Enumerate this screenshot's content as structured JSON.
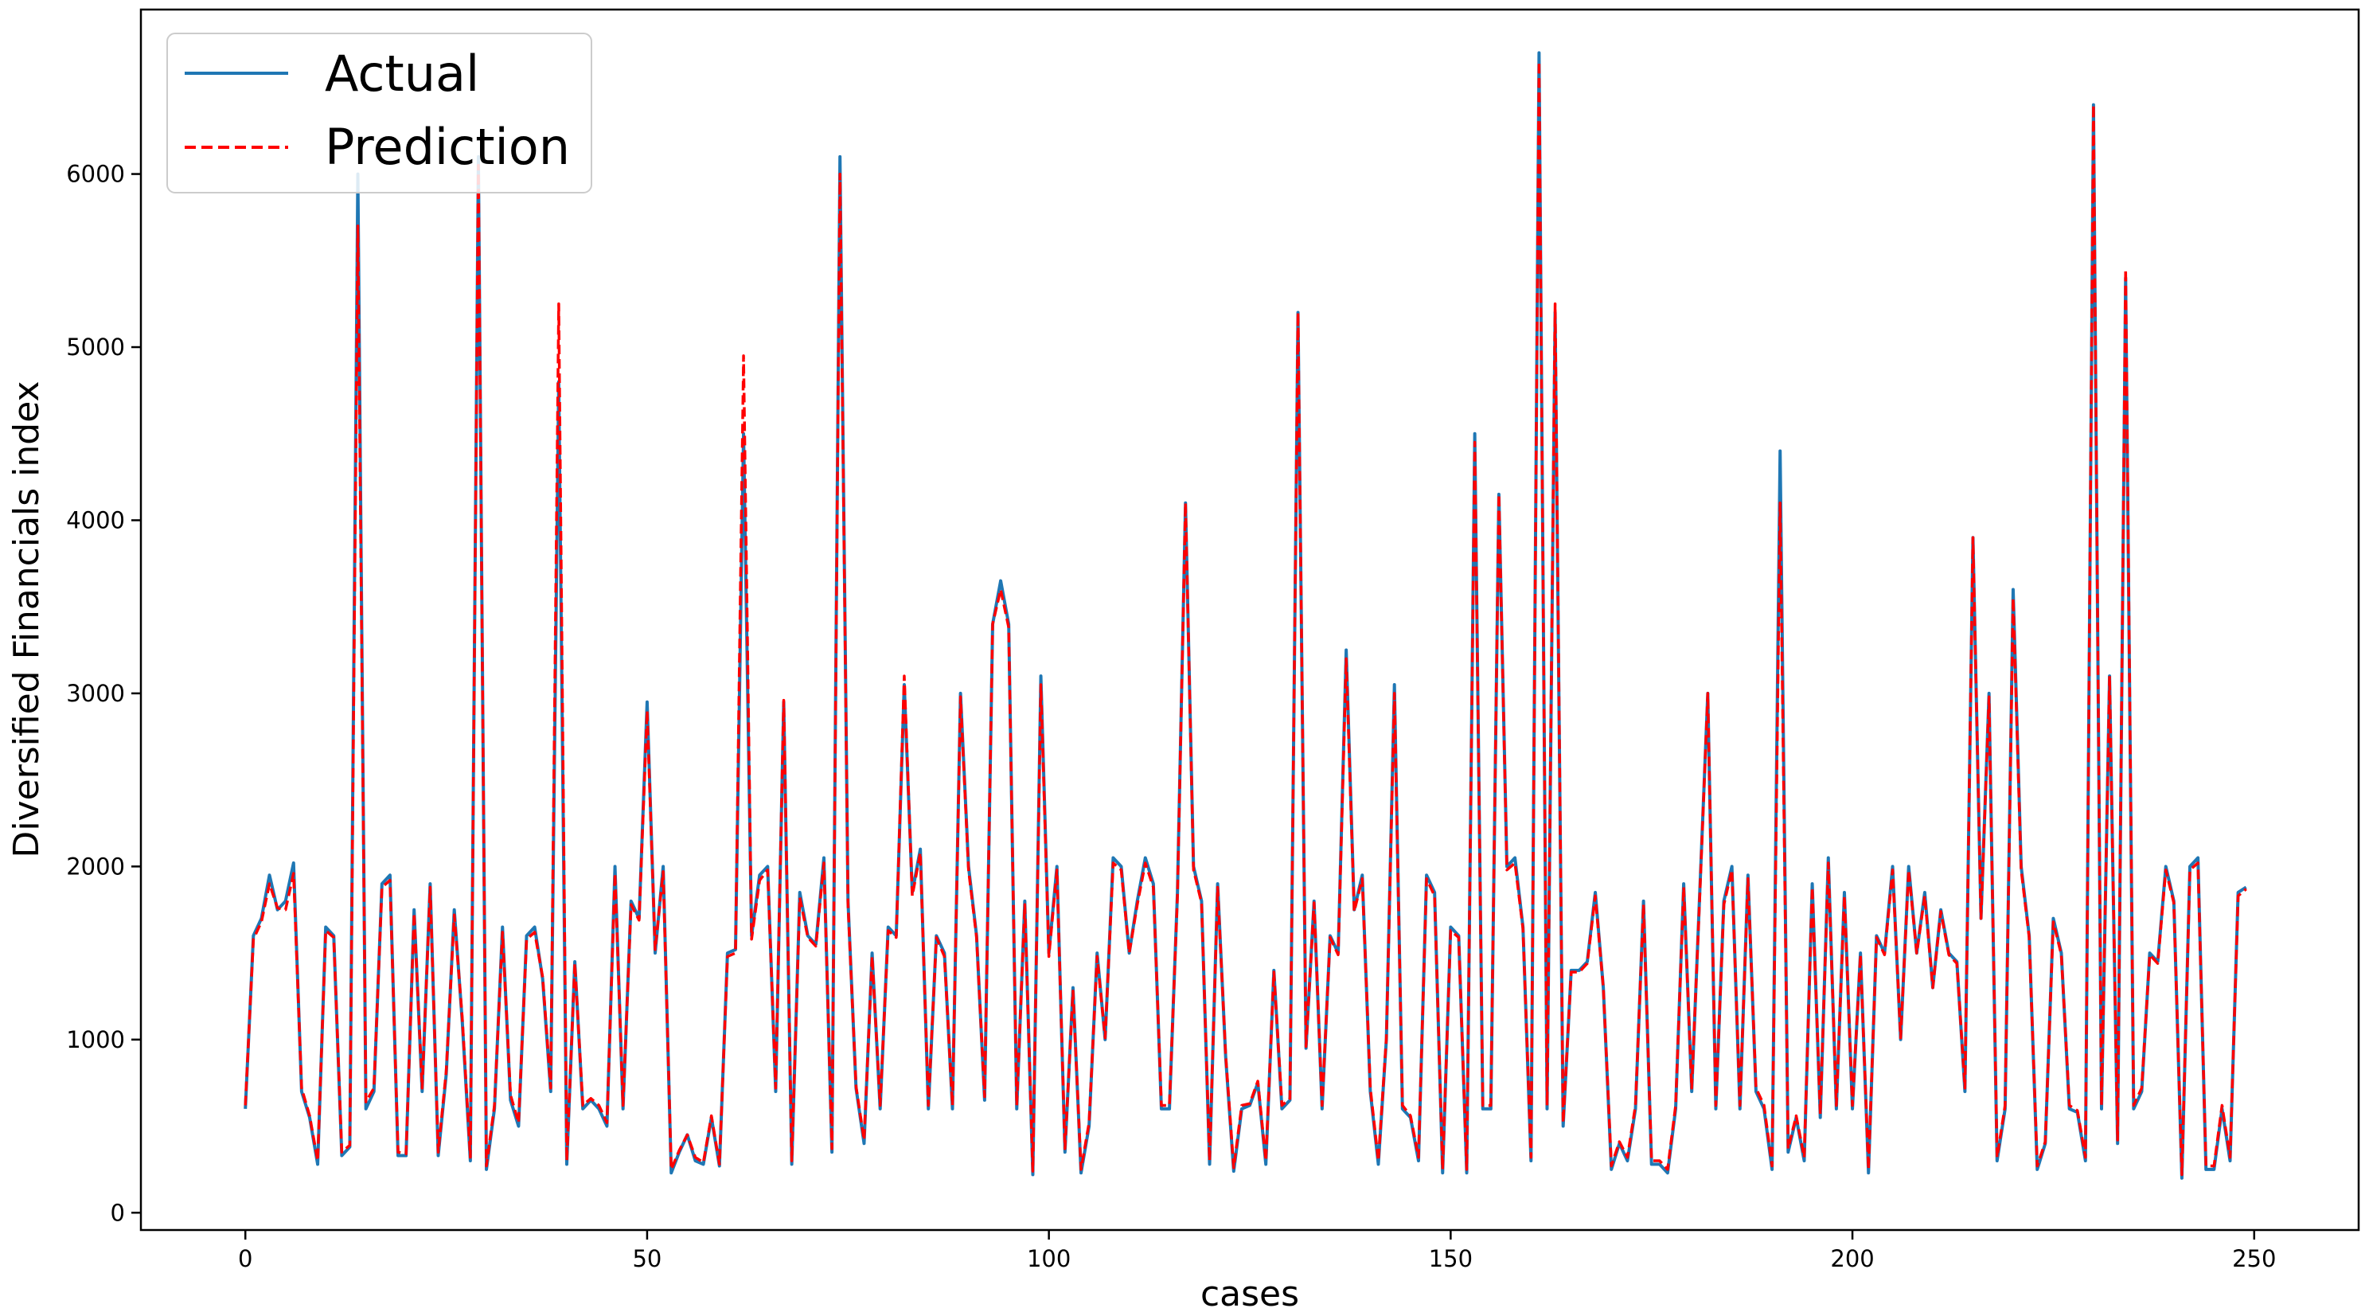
{
  "chart_data": {
    "type": "line",
    "xlabel": "cases",
    "ylabel": "Diversified Financials index",
    "xlim": [
      -13,
      263
    ],
    "ylim": [
      -100,
      6950
    ],
    "xticks": [
      0,
      50,
      100,
      150,
      200,
      250
    ],
    "yticks": [
      0,
      1000,
      2000,
      3000,
      4000,
      5000,
      6000
    ],
    "legend": {
      "placement": "top-left"
    },
    "colors": {
      "actual": "#1f77b4",
      "prediction": "#ff0000"
    },
    "series": [
      {
        "name": "Actual",
        "style": "solid",
        "values": [
          600,
          1600,
          1700,
          1950,
          1750,
          1800,
          2020,
          700,
          550,
          280,
          1650,
          1600,
          330,
          380,
          6000,
          600,
          700,
          1900,
          1950,
          330,
          330,
          1750,
          700,
          1900,
          330,
          800,
          1750,
          1100,
          300,
          6100,
          250,
          600,
          1650,
          650,
          500,
          1600,
          1650,
          1350,
          700,
          4800,
          280,
          1450,
          600,
          650,
          600,
          500,
          2000,
          600,
          1800,
          1700,
          2950,
          1500,
          2000,
          230,
          350,
          450,
          300,
          280,
          550,
          270,
          1500,
          1520,
          4500,
          1600,
          1950,
          2000,
          700,
          2950,
          280,
          1850,
          1600,
          1550,
          2050,
          350,
          6100,
          1800,
          720,
          400,
          1500,
          600,
          1650,
          1600,
          3050,
          1850,
          2100,
          600,
          1600,
          1500,
          600,
          3000,
          2000,
          1600,
          650,
          3400,
          3650,
          3400,
          600,
          1800,
          220,
          3100,
          1500,
          2000,
          350,
          1300,
          230,
          500,
          1500,
          1000,
          2050,
          2000,
          1500,
          1800,
          2050,
          1900,
          600,
          600,
          1850,
          4100,
          2000,
          1800,
          280,
          1900,
          900,
          240,
          600,
          620,
          750,
          280,
          1400,
          600,
          650,
          5200,
          950,
          1800,
          600,
          1600,
          1500,
          3250,
          1750,
          1950,
          700,
          280,
          1000,
          3050,
          600,
          550,
          300,
          1950,
          1850,
          230,
          1650,
          1600,
          230,
          4500,
          600,
          600,
          4150,
          2000,
          2050,
          1650,
          300,
          6700,
          600,
          5200,
          500,
          1400,
          1400,
          1450,
          1850,
          1300,
          250,
          400,
          300,
          600,
          1800,
          280,
          280,
          230,
          600,
          1900,
          700,
          1850,
          3000,
          600,
          1800,
          2000,
          600,
          1950,
          700,
          600,
          250,
          4400,
          350,
          550,
          300,
          1900,
          550,
          2050,
          600,
          1850,
          600,
          1500,
          230,
          1600,
          1500,
          2000,
          1000,
          2000,
          1500,
          1850,
          1300,
          1750,
          1500,
          1450,
          700,
          3900,
          1700,
          3000,
          300,
          600,
          3600,
          2000,
          1600,
          250,
          400,
          1700,
          1500,
          600,
          580,
          300,
          6400,
          600,
          3100,
          400,
          5400,
          600,
          700,
          1500,
          1450,
          2000,
          1800,
          200,
          2000,
          2050,
          250,
          250,
          600,
          300,
          1850,
          1880
        ]
      },
      {
        "name": "Prediction",
        "style": "dashed",
        "values": [
          620,
          1580,
          1680,
          1900,
          1760,
          1750,
          1960,
          720,
          560,
          300,
          1630,
          1590,
          350,
          390,
          5700,
          640,
          720,
          1880,
          1920,
          350,
          340,
          1730,
          720,
          1880,
          350,
          820,
          1720,
          1120,
          320,
          6050,
          270,
          620,
          1620,
          680,
          520,
          1580,
          1620,
          1360,
          720,
          5250,
          300,
          1440,
          620,
          660,
          620,
          520,
          1960,
          620,
          1780,
          1690,
          2900,
          1520,
          1970,
          250,
          360,
          450,
          320,
          290,
          560,
          280,
          1480,
          1500,
          4950,
          1580,
          1920,
          1980,
          720,
          2960,
          300,
          1820,
          1590,
          1540,
          2020,
          370,
          6000,
          1780,
          730,
          420,
          1480,
          620,
          1630,
          1590,
          3100,
          1830,
          2080,
          620,
          1590,
          1480,
          620,
          2980,
          1980,
          1590,
          670,
          3400,
          3600,
          3380,
          620,
          1780,
          240,
          3050,
          1480,
          1980,
          370,
          1280,
          250,
          520,
          1480,
          1010,
          2020,
          1980,
          1500,
          1780,
          2020,
          1880,
          620,
          620,
          1830,
          4100,
          1980,
          1790,
          300,
          1880,
          910,
          260,
          620,
          630,
          760,
          300,
          1390,
          620,
          660,
          5200,
          960,
          1790,
          620,
          1590,
          1490,
          3200,
          1740,
          1930,
          720,
          300,
          1010,
          3000,
          620,
          560,
          320,
          1930,
          1830,
          250,
          1630,
          1590,
          250,
          4450,
          620,
          620,
          4150,
          1980,
          2020,
          1640,
          320,
          6650,
          620,
          5250,
          520,
          1390,
          1390,
          1440,
          1830,
          1300,
          270,
          410,
          320,
          620,
          1780,
          300,
          300,
          250,
          620,
          1880,
          720,
          1830,
          3000,
          620,
          1780,
          1980,
          620,
          1930,
          720,
          620,
          270,
          4100,
          370,
          560,
          320,
          1880,
          570,
          2020,
          620,
          1830,
          620,
          1490,
          250,
          1590,
          1490,
          1980,
          1010,
          1980,
          1500,
          1830,
          1300,
          1740,
          1490,
          1440,
          720,
          3900,
          1700,
          2980,
          320,
          620,
          3550,
          1980,
          1590,
          270,
          410,
          1680,
          1490,
          620,
          590,
          320,
          6400,
          620,
          3100,
          420,
          5450,
          620,
          720,
          1490,
          1440,
          1980,
          1790,
          220,
          1980,
          2020,
          270,
          270,
          620,
          320,
          1830,
          1870
        ]
      }
    ]
  }
}
